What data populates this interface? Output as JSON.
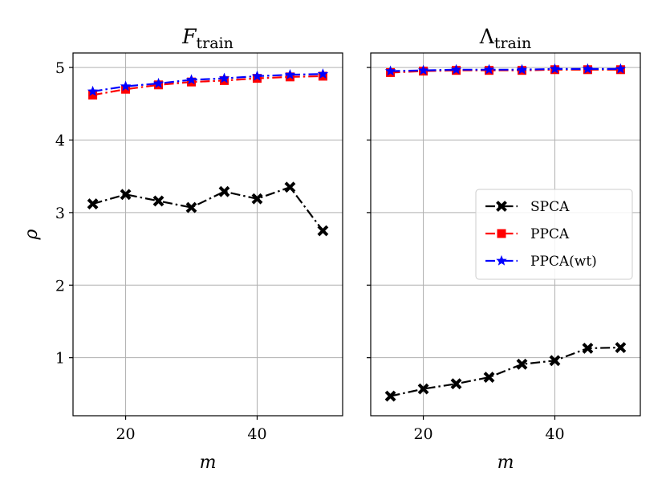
{
  "chart_data": [
    {
      "type": "line",
      "title": "F",
      "title_subscript": "train",
      "xlabel": "m",
      "ylabel": "ρ",
      "xlim": [
        12,
        53
      ],
      "ylim": [
        0.2,
        5.2
      ],
      "xticks": [
        20,
        40
      ],
      "yticks": [
        1,
        2,
        3,
        4,
        5
      ],
      "grid": true,
      "x": [
        15,
        20,
        25,
        30,
        35,
        40,
        45,
        50
      ],
      "series": [
        {
          "name": "SPCA",
          "color": "#000000",
          "marker": "x",
          "dash": "dashdot",
          "values": [
            3.12,
            3.25,
            3.16,
            3.07,
            3.29,
            3.19,
            3.35,
            2.75
          ]
        },
        {
          "name": "PPCA",
          "color": "#ff0000",
          "marker": "square",
          "dash": "dashdot",
          "values": [
            4.62,
            4.7,
            4.76,
            4.8,
            4.82,
            4.85,
            4.87,
            4.88
          ]
        },
        {
          "name": "PPCA(wt)",
          "color": "#0000ff",
          "marker": "star",
          "dash": "dashdot",
          "values": [
            4.67,
            4.74,
            4.78,
            4.83,
            4.85,
            4.88,
            4.9,
            4.91
          ]
        }
      ]
    },
    {
      "type": "line",
      "title": "Λ",
      "title_subscript": "train",
      "xlabel": "m",
      "ylabel": "",
      "xlim": [
        12,
        53
      ],
      "ylim": [
        0.2,
        5.2
      ],
      "xticks": [
        20,
        40
      ],
      "yticks": [
        1,
        2,
        3,
        4,
        5
      ],
      "grid": true,
      "x": [
        15,
        20,
        25,
        30,
        35,
        40,
        45,
        50
      ],
      "legend": "center-right",
      "series": [
        {
          "name": "SPCA",
          "color": "#000000",
          "marker": "x",
          "dash": "dashdot",
          "values": [
            0.47,
            0.57,
            0.64,
            0.73,
            0.91,
            0.96,
            1.13,
            1.14
          ]
        },
        {
          "name": "PPCA",
          "color": "#ff0000",
          "marker": "square",
          "dash": "dashdot",
          "values": [
            4.93,
            4.95,
            4.96,
            4.96,
            4.96,
            4.97,
            4.97,
            4.97
          ]
        },
        {
          "name": "PPCA(wt)",
          "color": "#0000ff",
          "marker": "star",
          "dash": "dashdot",
          "values": [
            4.95,
            4.96,
            4.97,
            4.97,
            4.97,
            4.98,
            4.98,
            4.98
          ]
        }
      ]
    }
  ]
}
